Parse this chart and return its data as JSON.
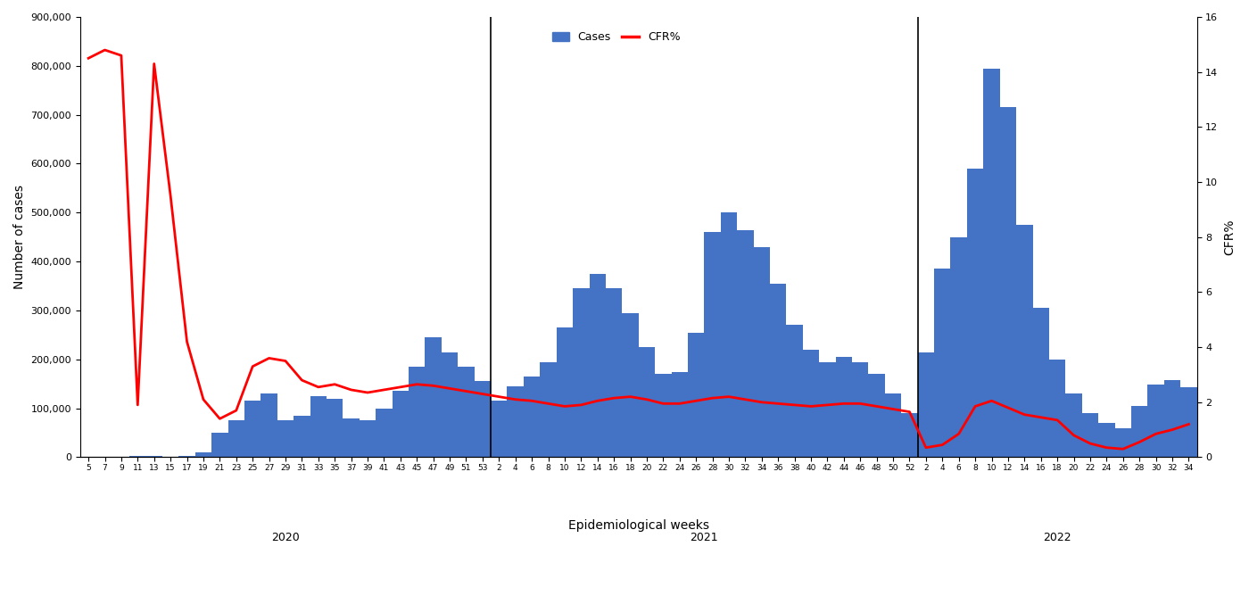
{
  "xlabel": "Epidemiological weeks",
  "ylabel_left": "Number of cases",
  "ylabel_right": "CFR%",
  "bar_color": "#4472C4",
  "line_color": "#FF0000",
  "background_color": "#FFFFFF",
  "ylim_left": [
    0,
    900000
  ],
  "ylim_right": [
    0,
    16
  ],
  "yticks_left": [
    0,
    100000,
    200000,
    300000,
    400000,
    500000,
    600000,
    700000,
    800000,
    900000
  ],
  "yticks_right": [
    0,
    2,
    4,
    6,
    8,
    10,
    12,
    14,
    16
  ],
  "year_labels": [
    "2020",
    "2021",
    "2022"
  ],
  "weeks_2020": [
    5,
    7,
    9,
    11,
    13,
    15,
    17,
    19,
    21,
    23,
    25,
    27,
    29,
    31,
    33,
    35,
    37,
    39,
    41,
    43,
    45,
    47,
    49,
    51,
    53
  ],
  "weeks_2021": [
    2,
    4,
    6,
    8,
    10,
    12,
    14,
    16,
    18,
    20,
    22,
    24,
    26,
    28,
    30,
    32,
    34,
    36,
    38,
    40,
    42,
    44,
    46,
    48,
    50,
    52
  ],
  "weeks_2022": [
    2,
    4,
    6,
    8,
    10,
    12,
    14,
    16,
    18,
    20,
    22,
    24,
    26,
    28,
    30,
    32,
    34
  ],
  "cases_2020": [
    200,
    300,
    1000,
    3000,
    2000,
    1500,
    2000,
    10000,
    50000,
    75000,
    115000,
    130000,
    75000,
    85000,
    125000,
    120000,
    80000,
    75000,
    100000,
    135000,
    185000,
    245000,
    215000,
    185000,
    155000
  ],
  "cases_2021": [
    115000,
    145000,
    165000,
    195000,
    265000,
    345000,
    375000,
    345000,
    295000,
    225000,
    170000,
    175000,
    255000,
    460000,
    500000,
    465000,
    430000,
    355000,
    270000,
    220000,
    195000,
    205000,
    195000,
    170000,
    130000,
    90000
  ],
  "cases_2022": [
    215000,
    385000,
    450000,
    590000,
    795000,
    715000,
    475000,
    305000,
    200000,
    130000,
    90000,
    70000,
    60000,
    105000,
    148000,
    158000,
    143000
  ],
  "cfr_2020": [
    14.5,
    14.8,
    14.6,
    1.9,
    14.3,
    9.5,
    4.2,
    2.1,
    1.4,
    1.7,
    3.3,
    3.6,
    3.5,
    2.8,
    2.55,
    2.65,
    2.45,
    2.35,
    2.45,
    2.55,
    2.65,
    2.6,
    2.5,
    2.4,
    2.3
  ],
  "cfr_2021": [
    2.2,
    2.1,
    2.05,
    1.95,
    1.85,
    1.9,
    2.05,
    2.15,
    2.2,
    2.1,
    1.95,
    1.95,
    2.05,
    2.15,
    2.2,
    2.1,
    2.0,
    1.95,
    1.9,
    1.85,
    1.9,
    1.95,
    1.95,
    1.85,
    1.75,
    1.65
  ],
  "cfr_2022": [
    0.35,
    0.45,
    0.85,
    1.85,
    2.05,
    1.8,
    1.55,
    1.45,
    1.35,
    0.8,
    0.5,
    0.35,
    0.3,
    0.55,
    0.85,
    1.0,
    1.2
  ]
}
